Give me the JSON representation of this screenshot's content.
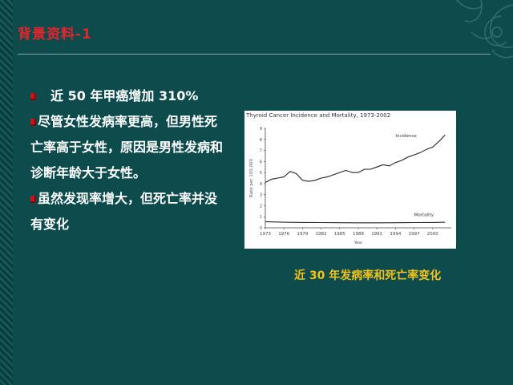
{
  "slide": {
    "title": "背景资料-1",
    "bullets": [
      {
        "text": "近 50 年甲癌增加 310%"
      },
      {
        "text": "尽管女性发病率更高，但男性死亡率高于女性，原因是男性发病和诊断年龄大于女性。"
      },
      {
        "text": "虽然发现率增大，但死亡率并没有变化"
      }
    ],
    "caption": "近 30 年发病率和死亡率变化"
  },
  "colors": {
    "background": "#0e4b4d",
    "title": "#e8232a",
    "caption": "#f3c318",
    "bullet": "#c3161c"
  },
  "chart_data": {
    "type": "line",
    "title": "Thyroid Cancer Incidence and Mortality, 1973-2002",
    "xlabel": "Year",
    "ylabel": "Rate per 100,000",
    "xlim": [
      1973,
      2003
    ],
    "ylim": [
      0,
      9
    ],
    "x_ticks": [
      "1973",
      "1976",
      "1979",
      "1982",
      "1985",
      "1988",
      "1991",
      "1994",
      "1997",
      "2000"
    ],
    "y_ticks": [
      "0",
      "1",
      "2",
      "3",
      "4",
      "5",
      "6",
      "7",
      "8",
      "9"
    ],
    "series": [
      {
        "name": "Incidence",
        "x": [
          1973,
          1974,
          1975,
          1976,
          1977,
          1978,
          1979,
          1980,
          1981,
          1982,
          1983,
          1984,
          1985,
          1986,
          1987,
          1988,
          1989,
          1990,
          1991,
          1992,
          1993,
          1994,
          1995,
          1996,
          1997,
          1998,
          1999,
          2000,
          2001,
          2002
        ],
        "values": [
          4.1,
          4.4,
          4.5,
          4.6,
          5.1,
          4.9,
          4.3,
          4.2,
          4.3,
          4.5,
          4.6,
          4.8,
          5.0,
          5.2,
          5.0,
          5.0,
          5.3,
          5.3,
          5.5,
          5.7,
          5.6,
          5.9,
          6.1,
          6.4,
          6.6,
          6.8,
          7.1,
          7.3,
          7.8,
          8.4
        ]
      },
      {
        "name": "Mortality",
        "x": [
          1973,
          1976,
          1979,
          1982,
          1985,
          1988,
          1991,
          1994,
          1997,
          2000,
          2002
        ],
        "values": [
          0.55,
          0.5,
          0.48,
          0.47,
          0.46,
          0.45,
          0.45,
          0.46,
          0.47,
          0.48,
          0.5
        ]
      }
    ]
  }
}
